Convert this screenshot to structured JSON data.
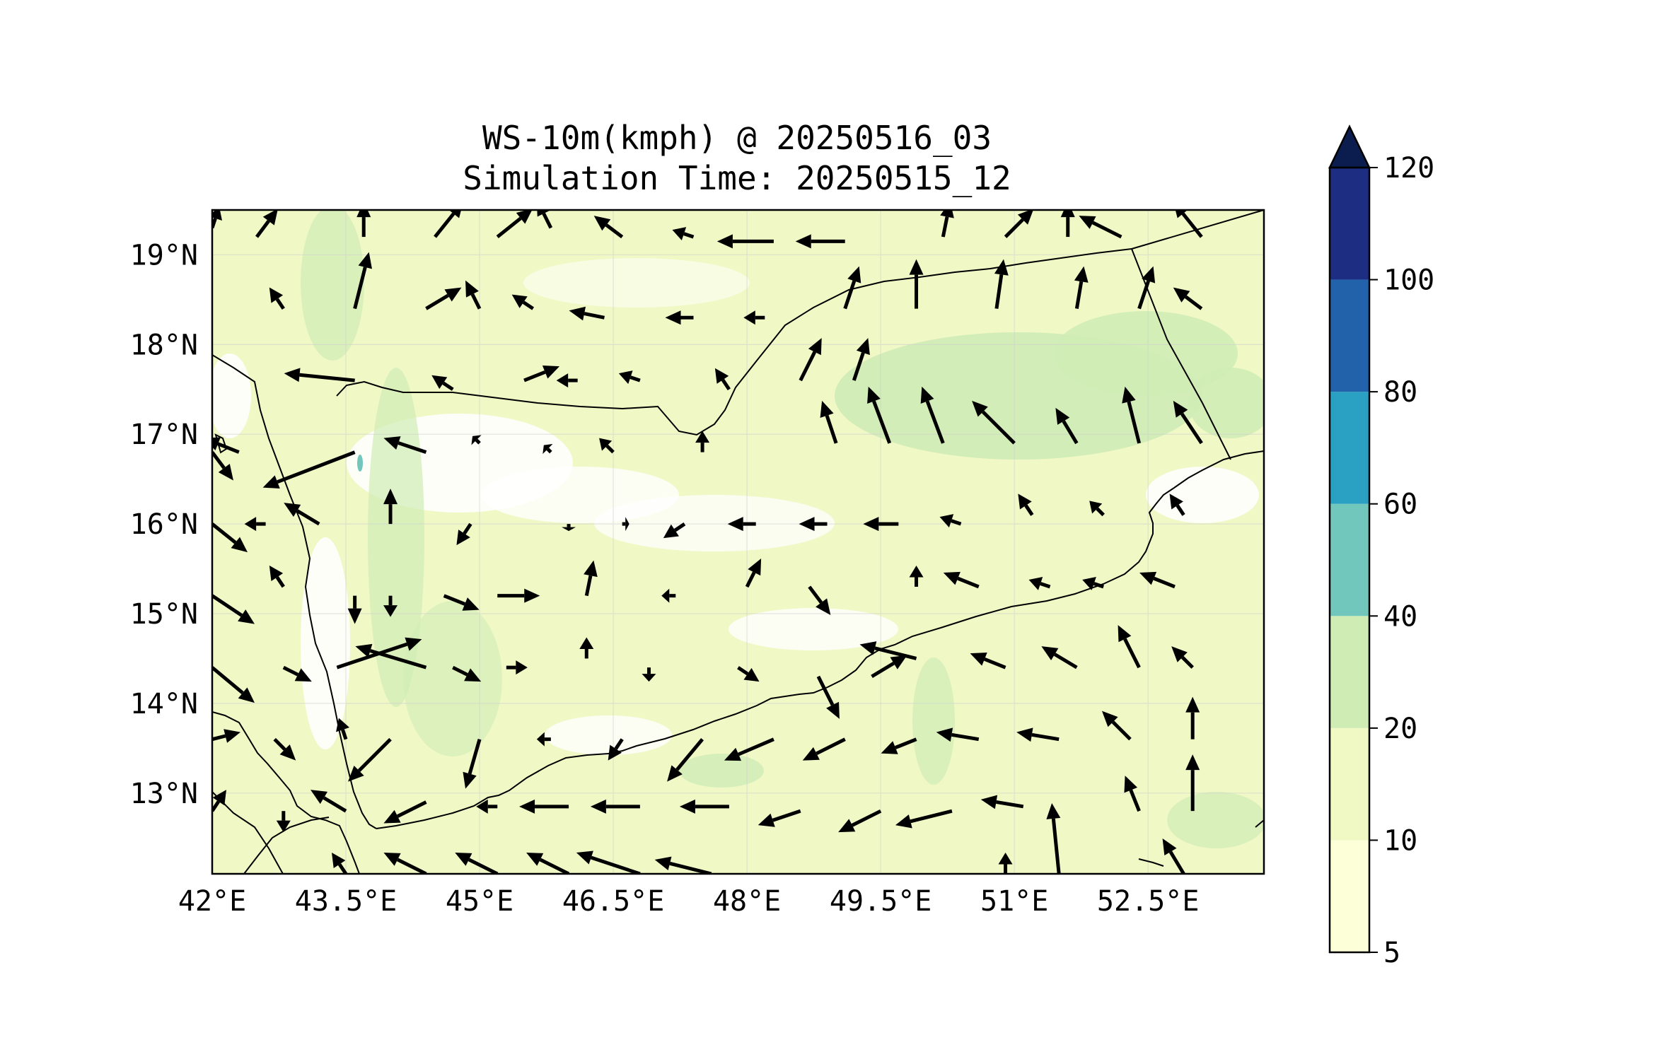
{
  "title": {
    "line1": "WS-10m(kmph) @ 20250516_03",
    "line2": "Simulation Time: 20250515_12"
  },
  "map": {
    "lon_range": [
      42.0,
      53.8
    ],
    "lat_range": [
      12.1,
      19.5
    ],
    "lon_ticks": [
      {
        "value": 42.0,
        "label": "42°E"
      },
      {
        "value": 43.5,
        "label": "43.5°E"
      },
      {
        "value": 45.0,
        "label": "45°E"
      },
      {
        "value": 46.5,
        "label": "46.5°E"
      },
      {
        "value": 48.0,
        "label": "48°E"
      },
      {
        "value": 49.5,
        "label": "49.5°E"
      },
      {
        "value": 51.0,
        "label": "51°E"
      },
      {
        "value": 52.5,
        "label": "52.5°E"
      }
    ],
    "lat_ticks": [
      {
        "value": 19,
        "label": "19°N"
      },
      {
        "value": 18,
        "label": "18°N"
      },
      {
        "value": 17,
        "label": "17°N"
      },
      {
        "value": 16,
        "label": "16°N"
      },
      {
        "value": 15,
        "label": "15°N"
      },
      {
        "value": 14,
        "label": "14°N"
      },
      {
        "value": 13,
        "label": "13°N"
      }
    ],
    "grid": true,
    "fill_color": "#f0f8c6",
    "light_color": "#ffffff",
    "mid_color": "#d0ecb6",
    "coast_color": "#000000"
  },
  "colorbar": {
    "levels": [
      {
        "label": "5",
        "color": "#fdffd9"
      },
      {
        "label": "10",
        "color": "#f0f9c4"
      },
      {
        "label": "20",
        "color": "#d0ecb5"
      },
      {
        "label": "40",
        "color": "#72c7bc"
      },
      {
        "label": "60",
        "color": "#2aa1c2"
      },
      {
        "label": "80",
        "color": "#2162ab"
      },
      {
        "label": "100",
        "color": "#1d2e82"
      },
      {
        "label": "120",
        "color": "#0a1d4e"
      }
    ],
    "extend": "max"
  },
  "wind_vectors": [
    {
      "lon": 42.0,
      "lat": 19.3,
      "u": 0.1,
      "v": 0.3
    },
    {
      "lon": 42.5,
      "lat": 19.2,
      "u": 0.3,
      "v": 0.4
    },
    {
      "lon": 43.7,
      "lat": 19.2,
      "u": 0.0,
      "v": 0.5
    },
    {
      "lon": 44.5,
      "lat": 19.2,
      "u": 0.4,
      "v": 0.5
    },
    {
      "lon": 45.2,
      "lat": 19.2,
      "u": 0.5,
      "v": 0.4
    },
    {
      "lon": 45.8,
      "lat": 19.3,
      "u": -0.2,
      "v": 0.4
    },
    {
      "lon": 46.6,
      "lat": 19.2,
      "u": -0.4,
      "v": 0.3
    },
    {
      "lon": 47.4,
      "lat": 19.2,
      "u": -0.3,
      "v": 0.1
    },
    {
      "lon": 48.3,
      "lat": 19.15,
      "u": -0.8,
      "v": 0.0
    },
    {
      "lon": 49.1,
      "lat": 19.15,
      "u": -0.7,
      "v": 0.0
    },
    {
      "lon": 50.2,
      "lat": 19.2,
      "u": 0.1,
      "v": 0.5
    },
    {
      "lon": 50.9,
      "lat": 19.2,
      "u": 0.4,
      "v": 0.4
    },
    {
      "lon": 51.6,
      "lat": 19.2,
      "u": 0.0,
      "v": 0.5
    },
    {
      "lon": 52.2,
      "lat": 19.2,
      "u": -0.6,
      "v": 0.3
    },
    {
      "lon": 53.1,
      "lat": 19.2,
      "u": -0.4,
      "v": 0.5
    },
    {
      "lon": 42.8,
      "lat": 18.4,
      "u": -0.2,
      "v": 0.3
    },
    {
      "lon": 43.6,
      "lat": 18.4,
      "u": 0.2,
      "v": 0.8
    },
    {
      "lon": 44.4,
      "lat": 18.4,
      "u": 0.5,
      "v": 0.3
    },
    {
      "lon": 45.0,
      "lat": 18.4,
      "u": -0.2,
      "v": 0.4
    },
    {
      "lon": 45.6,
      "lat": 18.4,
      "u": -0.3,
      "v": 0.2
    },
    {
      "lon": 46.4,
      "lat": 18.3,
      "u": -0.5,
      "v": 0.1
    },
    {
      "lon": 47.4,
      "lat": 18.3,
      "u": -0.4,
      "v": 0.0
    },
    {
      "lon": 48.2,
      "lat": 18.3,
      "u": -0.3,
      "v": 0.0
    },
    {
      "lon": 49.1,
      "lat": 18.4,
      "u": 0.2,
      "v": 0.6
    },
    {
      "lon": 49.9,
      "lat": 18.4,
      "u": 0.0,
      "v": 0.7
    },
    {
      "lon": 50.8,
      "lat": 18.4,
      "u": 0.1,
      "v": 0.7
    },
    {
      "lon": 51.7,
      "lat": 18.4,
      "u": 0.1,
      "v": 0.6
    },
    {
      "lon": 52.4,
      "lat": 18.4,
      "u": 0.2,
      "v": 0.6
    },
    {
      "lon": 53.1,
      "lat": 18.4,
      "u": -0.4,
      "v": 0.3
    },
    {
      "lon": 43.6,
      "lat": 17.6,
      "u": -1.0,
      "v": 0.1
    },
    {
      "lon": 44.7,
      "lat": 17.5,
      "u": -0.3,
      "v": 0.2
    },
    {
      "lon": 45.5,
      "lat": 17.6,
      "u": 0.5,
      "v": 0.2
    },
    {
      "lon": 46.1,
      "lat": 17.6,
      "u": -0.3,
      "v": 0.0
    },
    {
      "lon": 46.8,
      "lat": 17.6,
      "u": -0.3,
      "v": 0.1
    },
    {
      "lon": 47.8,
      "lat": 17.5,
      "u": -0.2,
      "v": 0.3
    },
    {
      "lon": 48.6,
      "lat": 17.6,
      "u": 0.3,
      "v": 0.6
    },
    {
      "lon": 49.0,
      "lat": 16.9,
      "u": -0.2,
      "v": 0.6
    },
    {
      "lon": 49.2,
      "lat": 17.6,
      "u": 0.2,
      "v": 0.6
    },
    {
      "lon": 49.6,
      "lat": 16.9,
      "u": -0.3,
      "v": 0.8
    },
    {
      "lon": 50.2,
      "lat": 16.9,
      "u": -0.3,
      "v": 0.8
    },
    {
      "lon": 51.0,
      "lat": 16.9,
      "u": -0.6,
      "v": 0.6
    },
    {
      "lon": 51.7,
      "lat": 16.9,
      "u": -0.3,
      "v": 0.5
    },
    {
      "lon": 52.4,
      "lat": 16.9,
      "u": -0.2,
      "v": 0.8
    },
    {
      "lon": 53.1,
      "lat": 16.9,
      "u": -0.4,
      "v": 0.6
    },
    {
      "lon": 43.6,
      "lat": 16.8,
      "u": -1.3,
      "v": -0.5
    },
    {
      "lon": 44.4,
      "lat": 16.8,
      "u": -0.6,
      "v": 0.2
    },
    {
      "lon": 45.0,
      "lat": 16.9,
      "u": -0.1,
      "v": 0.1
    },
    {
      "lon": 45.8,
      "lat": 16.8,
      "u": -0.1,
      "v": 0.1
    },
    {
      "lon": 46.5,
      "lat": 16.8,
      "u": -0.2,
      "v": 0.2
    },
    {
      "lon": 47.5,
      "lat": 16.8,
      "u": 0.0,
      "v": 0.3
    },
    {
      "lon": 42.3,
      "lat": 16.8,
      "u": -0.5,
      "v": 0.2
    },
    {
      "lon": 42.0,
      "lat": 16.8,
      "u": 0.3,
      "v": -0.4
    },
    {
      "lon": 42.0,
      "lat": 16.0,
      "u": 0.5,
      "v": -0.4
    },
    {
      "lon": 42.6,
      "lat": 16.0,
      "u": -0.3,
      "v": 0.0
    },
    {
      "lon": 43.2,
      "lat": 16.0,
      "u": -0.5,
      "v": 0.3
    },
    {
      "lon": 44.0,
      "lat": 16.0,
      "u": 0.0,
      "v": 0.5
    },
    {
      "lon": 44.9,
      "lat": 16.0,
      "u": -0.2,
      "v": -0.3
    },
    {
      "lon": 46.0,
      "lat": 16.0,
      "u": 0.0,
      "v": -0.1
    },
    {
      "lon": 46.6,
      "lat": 16.0,
      "u": 0.1,
      "v": 0.0
    },
    {
      "lon": 47.3,
      "lat": 16.0,
      "u": -0.3,
      "v": -0.2
    },
    {
      "lon": 48.1,
      "lat": 16.0,
      "u": -0.4,
      "v": 0.0
    },
    {
      "lon": 48.9,
      "lat": 16.0,
      "u": -0.4,
      "v": 0.0
    },
    {
      "lon": 49.7,
      "lat": 16.0,
      "u": -0.5,
      "v": 0.0
    },
    {
      "lon": 50.4,
      "lat": 16.0,
      "u": -0.3,
      "v": 0.1
    },
    {
      "lon": 51.2,
      "lat": 16.1,
      "u": -0.2,
      "v": 0.3
    },
    {
      "lon": 52.0,
      "lat": 16.1,
      "u": -0.2,
      "v": 0.2
    },
    {
      "lon": 52.9,
      "lat": 16.1,
      "u": -0.2,
      "v": 0.3
    },
    {
      "lon": 42.0,
      "lat": 15.2,
      "u": 0.6,
      "v": -0.4
    },
    {
      "lon": 42.8,
      "lat": 15.3,
      "u": -0.2,
      "v": 0.3
    },
    {
      "lon": 43.6,
      "lat": 15.2,
      "u": 0.0,
      "v": -0.4
    },
    {
      "lon": 44.0,
      "lat": 15.2,
      "u": 0.0,
      "v": -0.3
    },
    {
      "lon": 44.6,
      "lat": 15.2,
      "u": 0.5,
      "v": -0.2
    },
    {
      "lon": 45.2,
      "lat": 15.2,
      "u": 0.6,
      "v": 0.0
    },
    {
      "lon": 46.2,
      "lat": 15.2,
      "u": 0.1,
      "v": 0.5
    },
    {
      "lon": 47.2,
      "lat": 15.2,
      "u": -0.2,
      "v": 0.0
    },
    {
      "lon": 48.0,
      "lat": 15.3,
      "u": 0.2,
      "v": 0.4
    },
    {
      "lon": 48.7,
      "lat": 15.3,
      "u": 0.3,
      "v": -0.4
    },
    {
      "lon": 49.9,
      "lat": 15.3,
      "u": 0.0,
      "v": 0.3
    },
    {
      "lon": 50.6,
      "lat": 15.3,
      "u": -0.5,
      "v": 0.2
    },
    {
      "lon": 51.4,
      "lat": 15.3,
      "u": -0.3,
      "v": 0.1
    },
    {
      "lon": 52.0,
      "lat": 15.3,
      "u": -0.3,
      "v": 0.1
    },
    {
      "lon": 52.8,
      "lat": 15.3,
      "u": -0.5,
      "v": 0.2
    },
    {
      "lon": 42.0,
      "lat": 14.4,
      "u": 0.6,
      "v": -0.5
    },
    {
      "lon": 42.8,
      "lat": 14.4,
      "u": 0.4,
      "v": -0.2
    },
    {
      "lon": 43.4,
      "lat": 14.4,
      "u": 1.2,
      "v": 0.4
    },
    {
      "lon": 44.4,
      "lat": 14.4,
      "u": -1.0,
      "v": 0.3
    },
    {
      "lon": 44.7,
      "lat": 14.4,
      "u": 0.4,
      "v": -0.2
    },
    {
      "lon": 45.3,
      "lat": 14.4,
      "u": 0.3,
      "v": 0.0
    },
    {
      "lon": 46.2,
      "lat": 14.5,
      "u": 0.0,
      "v": 0.3
    },
    {
      "lon": 46.9,
      "lat": 14.4,
      "u": 0.0,
      "v": -0.2
    },
    {
      "lon": 47.9,
      "lat": 14.4,
      "u": 0.3,
      "v": -0.2
    },
    {
      "lon": 48.8,
      "lat": 14.3,
      "u": 0.3,
      "v": -0.6
    },
    {
      "lon": 49.4,
      "lat": 14.3,
      "u": 0.5,
      "v": 0.3
    },
    {
      "lon": 49.9,
      "lat": 14.5,
      "u": -0.8,
      "v": 0.2
    },
    {
      "lon": 50.9,
      "lat": 14.4,
      "u": -0.5,
      "v": 0.2
    },
    {
      "lon": 51.7,
      "lat": 14.4,
      "u": -0.5,
      "v": 0.3
    },
    {
      "lon": 52.4,
      "lat": 14.4,
      "u": -0.3,
      "v": 0.6
    },
    {
      "lon": 53.0,
      "lat": 14.4,
      "u": -0.3,
      "v": 0.3
    },
    {
      "lon": 42.0,
      "lat": 13.6,
      "u": 0.4,
      "v": 0.1
    },
    {
      "lon": 42.7,
      "lat": 13.6,
      "u": 0.3,
      "v": -0.3
    },
    {
      "lon": 43.5,
      "lat": 13.6,
      "u": -0.1,
      "v": 0.3
    },
    {
      "lon": 44.0,
      "lat": 13.6,
      "u": -0.6,
      "v": -0.6
    },
    {
      "lon": 45.0,
      "lat": 13.6,
      "u": -0.2,
      "v": -0.7
    },
    {
      "lon": 45.8,
      "lat": 13.6,
      "u": -0.2,
      "v": 0.0
    },
    {
      "lon": 46.6,
      "lat": 13.6,
      "u": -0.2,
      "v": -0.3
    },
    {
      "lon": 47.5,
      "lat": 13.6,
      "u": -0.5,
      "v": -0.6
    },
    {
      "lon": 48.3,
      "lat": 13.6,
      "u": -0.7,
      "v": -0.3
    },
    {
      "lon": 49.1,
      "lat": 13.6,
      "u": -0.6,
      "v": -0.3
    },
    {
      "lon": 49.9,
      "lat": 13.6,
      "u": -0.5,
      "v": -0.2
    },
    {
      "lon": 50.6,
      "lat": 13.6,
      "u": -0.6,
      "v": 0.1
    },
    {
      "lon": 51.5,
      "lat": 13.6,
      "u": -0.6,
      "v": 0.1
    },
    {
      "lon": 52.3,
      "lat": 13.6,
      "u": -0.4,
      "v": 0.4
    },
    {
      "lon": 53.0,
      "lat": 13.6,
      "u": 0.0,
      "v": 0.6
    },
    {
      "lon": 42.0,
      "lat": 12.8,
      "u": 0.2,
      "v": 0.3
    },
    {
      "lon": 42.8,
      "lat": 12.8,
      "u": 0.0,
      "v": -0.3
    },
    {
      "lon": 43.5,
      "lat": 12.8,
      "u": -0.5,
      "v": 0.3
    },
    {
      "lon": 44.4,
      "lat": 12.9,
      "u": -0.6,
      "v": -0.3
    },
    {
      "lon": 45.2,
      "lat": 12.85,
      "u": -0.3,
      "v": 0.0
    },
    {
      "lon": 46.0,
      "lat": 12.85,
      "u": -0.7,
      "v": 0.0
    },
    {
      "lon": 46.8,
      "lat": 12.85,
      "u": -0.7,
      "v": 0.0
    },
    {
      "lon": 47.8,
      "lat": 12.85,
      "u": -0.7,
      "v": 0.0
    },
    {
      "lon": 48.6,
      "lat": 12.8,
      "u": -0.6,
      "v": -0.2
    },
    {
      "lon": 49.5,
      "lat": 12.8,
      "u": -0.6,
      "v": -0.3
    },
    {
      "lon": 50.3,
      "lat": 12.8,
      "u": -0.8,
      "v": -0.2
    },
    {
      "lon": 51.1,
      "lat": 12.85,
      "u": -0.6,
      "v": 0.1
    },
    {
      "lon": 51.5,
      "lat": 12.1,
      "u": -0.1,
      "v": 1.0
    },
    {
      "lon": 52.4,
      "lat": 12.8,
      "u": -0.2,
      "v": 0.5
    },
    {
      "lon": 53.0,
      "lat": 12.8,
      "u": 0.0,
      "v": 0.8
    },
    {
      "lon": 43.5,
      "lat": 12.1,
      "u": -0.2,
      "v": 0.3
    },
    {
      "lon": 44.4,
      "lat": 12.1,
      "u": -0.6,
      "v": 0.3
    },
    {
      "lon": 45.2,
      "lat": 12.1,
      "u": -0.6,
      "v": 0.3
    },
    {
      "lon": 46.0,
      "lat": 12.1,
      "u": -0.6,
      "v": 0.3
    },
    {
      "lon": 46.8,
      "lat": 12.1,
      "u": -0.9,
      "v": 0.3
    },
    {
      "lon": 47.6,
      "lat": 12.1,
      "u": -0.8,
      "v": 0.2
    },
    {
      "lon": 50.9,
      "lat": 12.1,
      "u": 0.0,
      "v": 0.3
    },
    {
      "lon": 52.9,
      "lat": 12.1,
      "u": -0.3,
      "v": 0.5
    }
  ]
}
